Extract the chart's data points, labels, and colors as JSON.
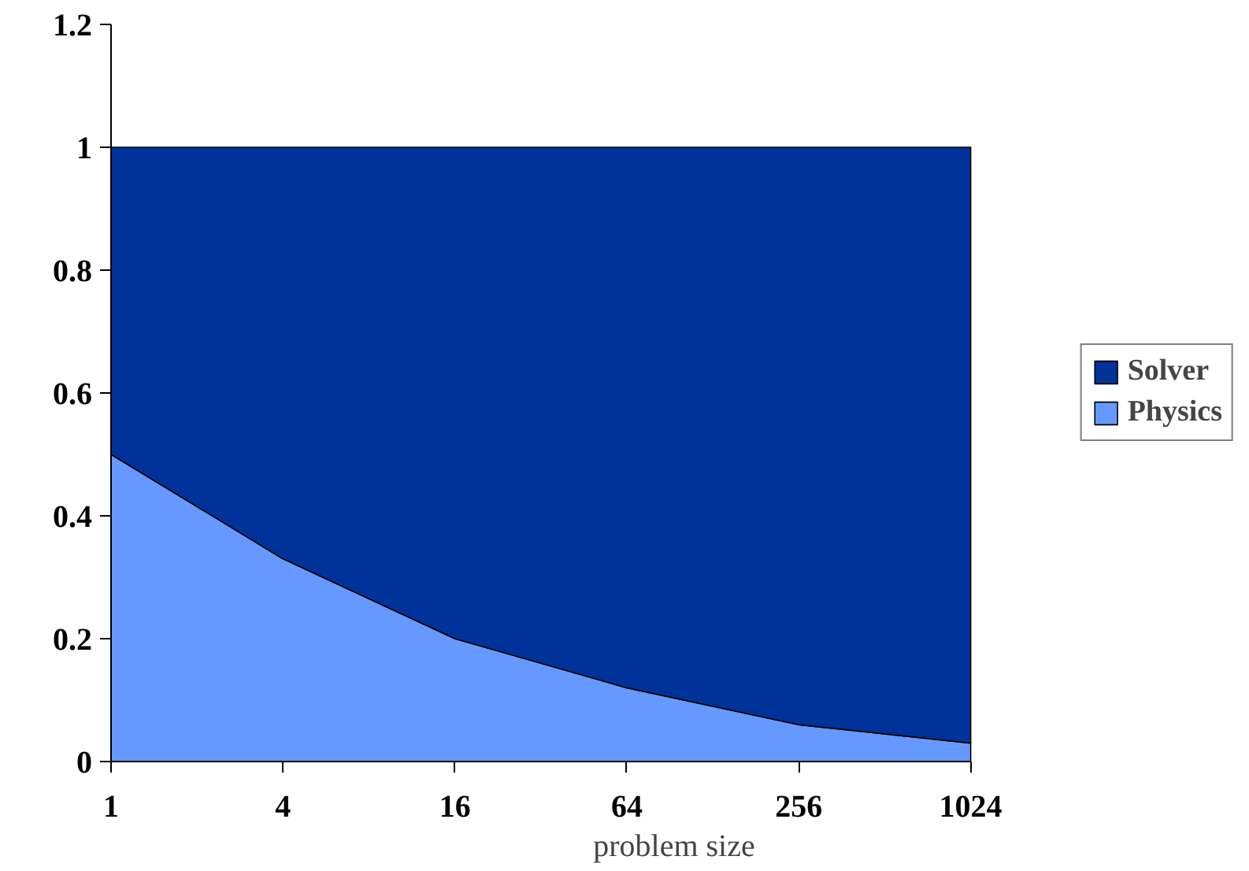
{
  "chart_data": {
    "type": "area",
    "stacked": true,
    "xlabel": "problem size",
    "categories": [
      "1",
      "4",
      "16",
      "64",
      "256",
      "1024"
    ],
    "series": [
      {
        "name": "Physics",
        "color": "#6699ff",
        "values": [
          0.5,
          0.33,
          0.2,
          0.12,
          0.06,
          0.03
        ]
      },
      {
        "name": "Solver",
        "color": "#003399",
        "values": [
          0.5,
          0.67,
          0.8,
          0.88,
          0.94,
          0.97
        ]
      }
    ],
    "ylim": [
      0,
      1.2
    ],
    "yticks": [
      0,
      0.2,
      0.4,
      0.6,
      0.8,
      1,
      1.2
    ],
    "grid": false,
    "legend": "right"
  }
}
